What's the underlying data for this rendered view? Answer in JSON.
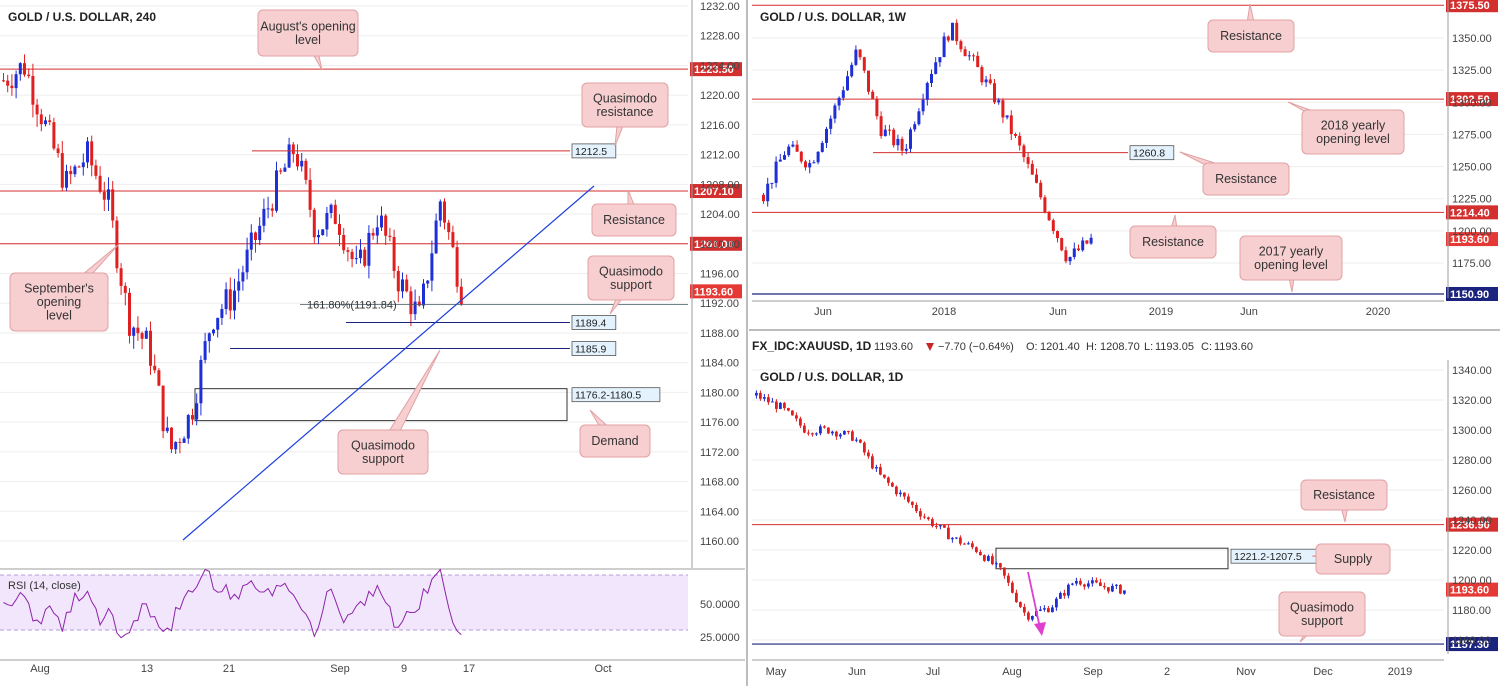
{
  "colors": {
    "up": "#1f2fd6",
    "down": "#e02020",
    "resistance": "#d32f2f",
    "support_line": "#1a237e",
    "note_fill": "#f7cfd0",
    "note_stroke": "#e0a1a3",
    "rsi_bg": "#f1e6fb",
    "rsi_line": "#8e24aa",
    "grid": "#eeeeee",
    "arrow": "#e040d0"
  },
  "chart_data": [
    {
      "id": "h4",
      "type": "candlestick",
      "title": "GOLD / U.S. DOLLAR, 240",
      "ylim": [
        1156,
        1233
      ],
      "y_ticks": [
        "1232.00",
        "1228.00",
        "1224.00",
        "1220.00",
        "1216.00",
        "1212.00",
        "1208.00",
        "1204.00",
        "1200.00",
        "1196.00",
        "1192.00",
        "1188.00",
        "1184.00",
        "1180.00",
        "1176.00",
        "1172.00",
        "1168.00",
        "1164.00",
        "1160.00"
      ],
      "x_ticks": [
        "Aug",
        "13",
        "21",
        "Sep",
        "9",
        "17",
        "Oct"
      ],
      "levels": [
        {
          "price": 1223.5,
          "label": "1223.50",
          "tag": true
        },
        {
          "price": 1207.1,
          "label": "1207.10",
          "tag": true
        },
        {
          "price": 1200.0,
          "label": "1200.00",
          "tag": true
        },
        {
          "price": 1212.5,
          "label": "1212.5",
          "tag": false
        },
        {
          "price": 1189.4,
          "label": "1189.4",
          "tag": false
        },
        {
          "price": 1185.9,
          "label": "1185.9",
          "tag": false
        }
      ],
      "last_price": "1193.60",
      "fib_label": "161.80%(1191.84)",
      "demand_zone": {
        "low": 1176.2,
        "high": 1180.5,
        "label": "1176.2-1180.5"
      },
      "notes": [
        {
          "id": "aug-open",
          "text": [
            "August's opening",
            "level"
          ]
        },
        {
          "id": "qm-res",
          "text": [
            "Quasimodo",
            "resistance"
          ]
        },
        {
          "id": "resistance",
          "text": [
            "Resistance"
          ]
        },
        {
          "id": "sep-open",
          "text": [
            "September's",
            "opening",
            "level"
          ]
        },
        {
          "id": "qm-sup1",
          "text": [
            "Quasimodo",
            "support"
          ]
        },
        {
          "id": "qm-sup2",
          "text": [
            "Quasimodo",
            "support"
          ]
        },
        {
          "id": "demand",
          "text": [
            "Demand"
          ]
        }
      ],
      "rsi": {
        "title": "RSI (14, close)",
        "ticks": [
          "50.0000",
          "25.0000"
        ]
      }
    },
    {
      "id": "w1",
      "type": "candlestick",
      "title": "GOLD / U.S. DOLLAR, 1W",
      "ylim": [
        1145,
        1378
      ],
      "y_ticks": [
        "1350.00",
        "1325.00",
        "1300.00",
        "1275.00",
        "1250.00",
        "1225.00",
        "1200.00",
        "1175.00"
      ],
      "x_ticks": [
        "Jun",
        "2018",
        "Jun",
        "2019",
        "Jun",
        "2020"
      ],
      "levels": [
        {
          "price": 1375.5,
          "label": "1375.50",
          "tag": true
        },
        {
          "price": 1302.5,
          "label": "1302.50",
          "tag": true
        },
        {
          "price": 1214.4,
          "label": "1214.40",
          "tag": true
        },
        {
          "price": 1150.9,
          "label": "1150.90",
          "tag": true
        },
        {
          "price": 1260.8,
          "label": "1260.8",
          "tag": false
        }
      ],
      "last_price": "1193.60",
      "notes": [
        {
          "id": "w-res-top",
          "text": [
            "Resistance"
          ]
        },
        {
          "id": "w-2018",
          "text": [
            "2018 yearly",
            "opening level"
          ]
        },
        {
          "id": "w-res-mid",
          "text": [
            "Resistance"
          ]
        },
        {
          "id": "w-res-low",
          "text": [
            "Resistance"
          ]
        },
        {
          "id": "w-2017",
          "text": [
            "2017 yearly",
            "opening level"
          ]
        }
      ]
    },
    {
      "id": "d1",
      "type": "candlestick",
      "title": "GOLD / U.S. DOLLAR, 1D",
      "ylim": [
        1154,
        1345
      ],
      "y_ticks": [
        "1340.00",
        "1320.00",
        "1300.00",
        "1280.00",
        "1260.00",
        "1240.00",
        "1220.00",
        "1200.00",
        "1180.00",
        "1160.00"
      ],
      "x_ticks": [
        "May",
        "Jun",
        "Jul",
        "Aug",
        "Sep",
        "2",
        "Nov",
        "Dec",
        "2019"
      ],
      "levels": [
        {
          "price": 1236.9,
          "label": "1236.90",
          "tag": true
        },
        {
          "price": 1157.3,
          "label": "1157.30",
          "tag": true
        }
      ],
      "last_price": "1193.60",
      "supply_zone": {
        "low": 1207.5,
        "high": 1221.2,
        "label": "1221.2-1207.5"
      },
      "notes": [
        {
          "id": "d-res",
          "text": [
            "Resistance"
          ]
        },
        {
          "id": "d-supply",
          "text": [
            "Supply"
          ]
        },
        {
          "id": "d-qm",
          "text": [
            "Quasimodo",
            "support"
          ]
        }
      ]
    }
  ],
  "quote_bar": {
    "symbol": "FX_IDC:XAUUSD, 1D",
    "price": "1193.60",
    "change": "−7.70 (−0.64%)",
    "o_label": "O:",
    "o": "1201.40",
    "h_label": "H:",
    "h": "1208.70",
    "l_label": "L:",
    "l": "1193.05",
    "c_label": "C:",
    "c": "1193.60"
  }
}
